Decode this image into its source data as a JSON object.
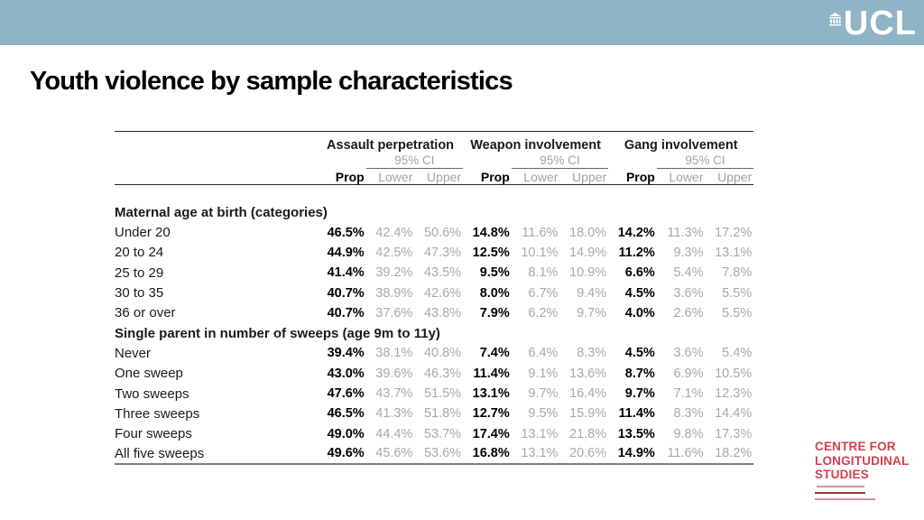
{
  "slide": {
    "title": "Youth violence by sample characteristics",
    "banner": {
      "color": "#8eb4c5"
    },
    "ucl_logo_text": "UCL",
    "cls_logo": {
      "lines": [
        "CENTRE FOR",
        "LONGITUDINAL",
        "STUDIES"
      ],
      "text_color": "#d5404e",
      "rule_light_color": "#e08e98",
      "rule_dark_color": "#a12f3e"
    }
  },
  "table": {
    "groups": [
      "Assault perpetration",
      "Weapon involvement",
      "Gang involvement"
    ],
    "ci_label": "95% CI",
    "columns": [
      "Prop",
      "Lower",
      "Upper"
    ],
    "sections": [
      {
        "header": "Maternal age at birth (categories)",
        "rows": [
          {
            "label": "Under 20",
            "values": [
              "46.5%",
              "42.4%",
              "50.6%",
              "14.8%",
              "11.6%",
              "18.0%",
              "14.2%",
              "11.3%",
              "17.2%"
            ]
          },
          {
            "label": "20 to 24",
            "values": [
              "44.9%",
              "42.5%",
              "47.3%",
              "12.5%",
              "10.1%",
              "14.9%",
              "11.2%",
              "9.3%",
              "13.1%"
            ]
          },
          {
            "label": "25 to 29",
            "values": [
              "41.4%",
              "39.2%",
              "43.5%",
              "9.5%",
              "8.1%",
              "10.9%",
              "6.6%",
              "5.4%",
              "7.8%"
            ]
          },
          {
            "label": "30 to 35",
            "values": [
              "40.7%",
              "38.9%",
              "42.6%",
              "8.0%",
              "6.7%",
              "9.4%",
              "4.5%",
              "3.6%",
              "5.5%"
            ]
          },
          {
            "label": "36 or over",
            "values": [
              "40.7%",
              "37.6%",
              "43.8%",
              "7.9%",
              "6.2%",
              "9.7%",
              "4.0%",
              "2.6%",
              "5.5%"
            ]
          }
        ]
      },
      {
        "header": "Single parent in number of sweeps (age 9m to 11y)",
        "rows": [
          {
            "label": "Never",
            "values": [
              "39.4%",
              "38.1%",
              "40.8%",
              "7.4%",
              "6.4%",
              "8.3%",
              "4.5%",
              "3.6%",
              "5.4%"
            ]
          },
          {
            "label": "One sweep",
            "values": [
              "43.0%",
              "39.6%",
              "46.3%",
              "11.4%",
              "9.1%",
              "13.6%",
              "8.7%",
              "6.9%",
              "10.5%"
            ]
          },
          {
            "label": "Two sweeps",
            "values": [
              "47.6%",
              "43.7%",
              "51.5%",
              "13.1%",
              "9.7%",
              "16.4%",
              "9.7%",
              "7.1%",
              "12.3%"
            ]
          },
          {
            "label": "Three sweeps",
            "values": [
              "46.5%",
              "41.3%",
              "51.8%",
              "12.7%",
              "9.5%",
              "15.9%",
              "11.4%",
              "8.3%",
              "14.4%"
            ]
          },
          {
            "label": "Four sweeps",
            "values": [
              "49.0%",
              "44.4%",
              "53.7%",
              "17.4%",
              "13.1%",
              "21.8%",
              "13.5%",
              "9.8%",
              "17.3%"
            ]
          },
          {
            "label": "All five sweeps",
            "values": [
              "49.6%",
              "45.6%",
              "53.6%",
              "16.8%",
              "13.1%",
              "20.6%",
              "14.9%",
              "11.6%",
              "18.2%"
            ]
          }
        ]
      }
    ]
  }
}
